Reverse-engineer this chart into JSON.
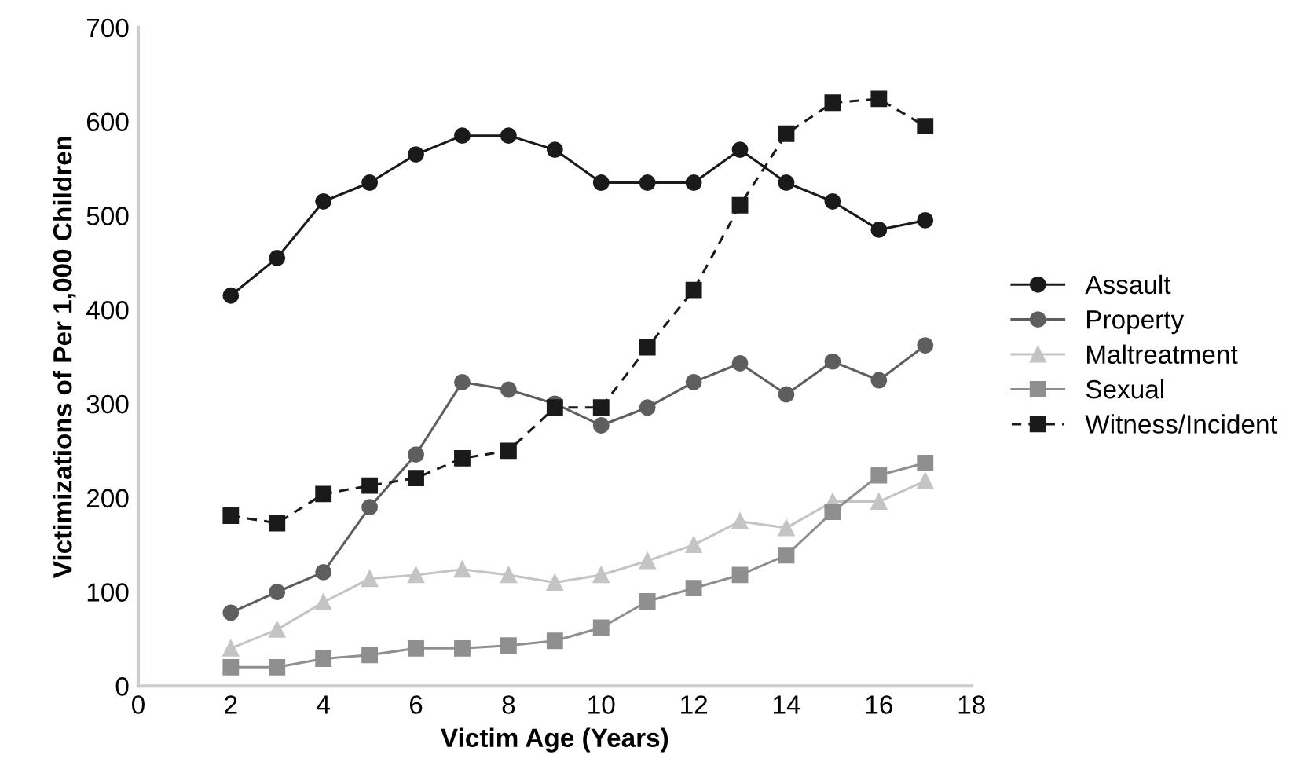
{
  "chart_data": {
    "type": "line",
    "xlabel": "Victim Age (Years)",
    "ylabel": "Victimizations of Per 1,000 Children",
    "x": [
      2,
      3,
      4,
      5,
      6,
      7,
      8,
      9,
      10,
      11,
      12,
      13,
      14,
      15,
      16,
      17
    ],
    "xlim": [
      0,
      18
    ],
    "xticks": [
      0,
      2,
      4,
      6,
      8,
      10,
      12,
      14,
      16,
      18
    ],
    "ylim": [
      0,
      700
    ],
    "yticks": [
      0,
      100,
      200,
      300,
      400,
      500,
      600,
      700
    ],
    "grid": false,
    "legend": "right",
    "series": [
      {
        "name": "Assault",
        "color": "#1a1a1a",
        "marker": "circle",
        "line_style": "solid",
        "values": [
          415,
          455,
          515,
          535,
          565,
          585,
          585,
          570,
          535,
          535,
          535,
          570,
          535,
          515,
          485,
          495
        ]
      },
      {
        "name": "Property",
        "color": "#5e5e5e",
        "marker": "circle",
        "line_style": "solid",
        "values": [
          78,
          100,
          121,
          190,
          246,
          323,
          315,
          300,
          277,
          296,
          323,
          343,
          310,
          345,
          325,
          362
        ]
      },
      {
        "name": "Maltreatment",
        "color": "#c4c4c4",
        "marker": "triangle",
        "line_style": "solid",
        "values": [
          40,
          60,
          89,
          114,
          118,
          124,
          118,
          110,
          118,
          133,
          150,
          175,
          168,
          196,
          196,
          218
        ]
      },
      {
        "name": "Sexual",
        "color": "#8f8f8f",
        "marker": "square",
        "line_style": "solid",
        "values": [
          20,
          20,
          29,
          33,
          40,
          40,
          43,
          48,
          62,
          90,
          104,
          118,
          139,
          185,
          224,
          237
        ]
      },
      {
        "name": "Witness/Incident",
        "color": "#1a1a1a",
        "marker": "square",
        "line_style": "dashed",
        "values": [
          181,
          173,
          204,
          213,
          221,
          242,
          250,
          296,
          296,
          360,
          421,
          511,
          587,
          620,
          624,
          595
        ]
      }
    ]
  }
}
